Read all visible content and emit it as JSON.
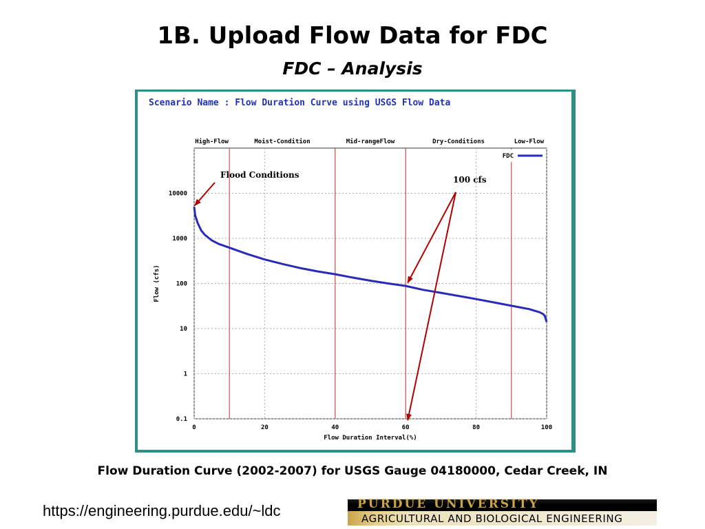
{
  "slide": {
    "title": "1B. Upload Flow Data for FDC",
    "subtitle": "FDC – Analysis",
    "caption": "Flow Duration Curve (2002-2007) for USGS Gauge 04180000, Cedar Creek, IN",
    "url": "https://engineering.purdue.edu/~ldc"
  },
  "logo": {
    "university": "PURDUE UNIVERSITY",
    "department": "AGRICULTURAL AND BIOLOGICAL ENGINEERING"
  },
  "chart_data": {
    "type": "line",
    "title": "Scenario Name : Flow Duration Curve using USGS Flow Data",
    "xlabel": "Flow Duration Interval(%)",
    "ylabel": "Flow (cfs)",
    "xlim": [
      0,
      100
    ],
    "ylim": [
      0.1,
      100000
    ],
    "y_scale": "log",
    "grid": true,
    "x_ticks": [
      0,
      20,
      40,
      60,
      80,
      100
    ],
    "y_ticks": [
      {
        "value": 0.1,
        "label": "0.1"
      },
      {
        "value": 1,
        "label": "1"
      },
      {
        "value": 10,
        "label": "10"
      },
      {
        "value": 100,
        "label": "100"
      },
      {
        "value": 1000,
        "label": "1000"
      },
      {
        "value": 10000,
        "label": "10000"
      }
    ],
    "zones": [
      {
        "label": "High-Flow",
        "from": 0,
        "to": 10
      },
      {
        "label": "Moist-Condition",
        "from": 10,
        "to": 40
      },
      {
        "label": "Mid-rangeFlow",
        "from": 40,
        "to": 60
      },
      {
        "label": "Dry-Conditions",
        "from": 60,
        "to": 90
      },
      {
        "label": "Low-Flow",
        "from": 90,
        "to": 100
      }
    ],
    "zone_boundaries": [
      10,
      40,
      60,
      90
    ],
    "legend": {
      "position": "top-right"
    },
    "series": [
      {
        "name": "FDC",
        "color": "#2a2ab8",
        "x": [
          0,
          0.3,
          1,
          2,
          3,
          5,
          7,
          10,
          15,
          20,
          25,
          30,
          35,
          40,
          45,
          50,
          55,
          60,
          65,
          70,
          75,
          80,
          85,
          90,
          95,
          98,
          99,
          99.5,
          100
        ],
        "y": [
          5000,
          3200,
          2200,
          1500,
          1200,
          900,
          750,
          620,
          450,
          340,
          270,
          220,
          185,
          160,
          135,
          115,
          100,
          88,
          72,
          62,
          53,
          45,
          38,
          32,
          27,
          23,
          21,
          19,
          14
        ]
      }
    ],
    "annotations": [
      {
        "text": "Flood Conditions",
        "target": {
          "x": 0,
          "y": 5000
        }
      },
      {
        "text": "100 cfs",
        "targets": [
          {
            "x": 60,
            "y": 90
          },
          {
            "x": 60,
            "y": 0.1
          }
        ]
      }
    ]
  }
}
